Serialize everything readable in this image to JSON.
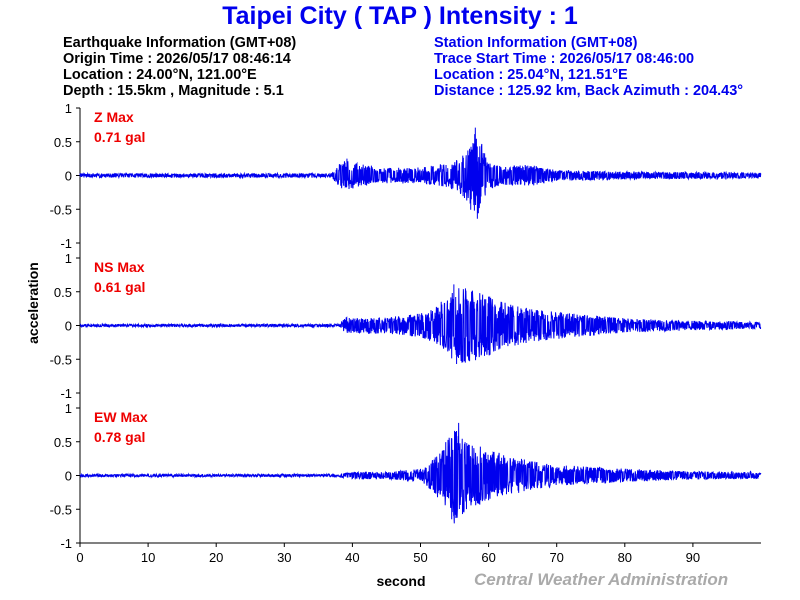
{
  "header": {
    "title": "Taipei City ( TAP ) Intensity : 1"
  },
  "earthquake": {
    "heading": "Earthquake Information (GMT+08)",
    "origin_time": "Origin Time : 2026/05/17 08:46:14",
    "location": "Location : 24.00°N, 121.00°E",
    "depth_magnitude": "Depth : 15.5km , Magnitude : 5.1"
  },
  "station": {
    "heading": "Station Information (GMT+08)",
    "trace_start": "Trace Start Time : 2026/05/17 08:46:00",
    "location": "Location : 25.04°N, 121.51°E",
    "distance": "Distance : 125.92 km, Back Azimuth : 204.43°"
  },
  "credit": "Central Weather Administration",
  "chart_data": {
    "type": "line",
    "xlabel": "second",
    "ylabel": "acceleration",
    "xlim": [
      0,
      100
    ],
    "x_ticks": [
      0,
      10,
      20,
      30,
      40,
      50,
      60,
      70,
      80,
      90
    ],
    "ylim": [
      -1,
      1
    ],
    "y_ticks": [
      "1",
      "0.5",
      "0",
      "-0.5",
      "-1"
    ],
    "line_color": "#0000ee",
    "label_color": "#ee0000",
    "series": [
      {
        "name": "Z Max",
        "max_label": "0.71 gal",
        "peak": 0.71,
        "envelope": [
          [
            0,
            0.03
          ],
          [
            37,
            0.03
          ],
          [
            38,
            0.17
          ],
          [
            39,
            0.22
          ],
          [
            41,
            0.17
          ],
          [
            45,
            0.12
          ],
          [
            50,
            0.12
          ],
          [
            55,
            0.2
          ],
          [
            57,
            0.4
          ],
          [
            58,
            0.71
          ],
          [
            59,
            0.5
          ],
          [
            60,
            0.2
          ],
          [
            62,
            0.14
          ],
          [
            66,
            0.16
          ],
          [
            70,
            0.08
          ],
          [
            80,
            0.06
          ],
          [
            100,
            0.04
          ]
        ],
        "spikes": [
          [
            58.05,
            0.71
          ],
          [
            58.35,
            -0.64
          ],
          [
            57.7,
            0.48
          ],
          [
            58.6,
            -0.45
          ],
          [
            57.1,
            0.3
          ],
          [
            56.6,
            -0.24
          ],
          [
            39.2,
            0.25
          ],
          [
            39.5,
            -0.2
          ]
        ]
      },
      {
        "name": "NS Max",
        "max_label": "0.61 gal",
        "peak": 0.61,
        "envelope": [
          [
            0,
            0.02
          ],
          [
            38,
            0.02
          ],
          [
            39,
            0.12
          ],
          [
            45,
            0.12
          ],
          [
            50,
            0.18
          ],
          [
            52,
            0.25
          ],
          [
            54,
            0.45
          ],
          [
            56,
            0.58
          ],
          [
            58,
            0.55
          ],
          [
            60,
            0.45
          ],
          [
            62,
            0.35
          ],
          [
            66,
            0.25
          ],
          [
            70,
            0.2
          ],
          [
            80,
            0.11
          ],
          [
            90,
            0.07
          ],
          [
            100,
            0.05
          ]
        ],
        "spikes": [
          [
            54.9,
            0.61
          ],
          [
            55.3,
            -0.57
          ],
          [
            56.6,
            0.55
          ],
          [
            57.2,
            -0.52
          ],
          [
            58.7,
            0.48
          ],
          [
            59.4,
            -0.45
          ]
        ]
      },
      {
        "name": "EW Max",
        "max_label": "0.78 gal",
        "peak": 0.78,
        "envelope": [
          [
            0,
            0.02
          ],
          [
            38,
            0.02
          ],
          [
            40,
            0.06
          ],
          [
            45,
            0.05
          ],
          [
            50,
            0.1
          ],
          [
            52,
            0.25
          ],
          [
            54,
            0.55
          ],
          [
            55,
            0.72
          ],
          [
            56,
            0.6
          ],
          [
            58,
            0.45
          ],
          [
            60,
            0.4
          ],
          [
            62,
            0.32
          ],
          [
            66,
            0.22
          ],
          [
            70,
            0.16
          ],
          [
            80,
            0.1
          ],
          [
            90,
            0.06
          ],
          [
            100,
            0.05
          ]
        ],
        "spikes": [
          [
            55.6,
            0.78
          ],
          [
            55.2,
            -0.63
          ],
          [
            54.6,
            0.55
          ],
          [
            56.4,
            -0.5
          ],
          [
            57.6,
            0.44
          ],
          [
            58.1,
            -0.44
          ]
        ]
      }
    ]
  }
}
